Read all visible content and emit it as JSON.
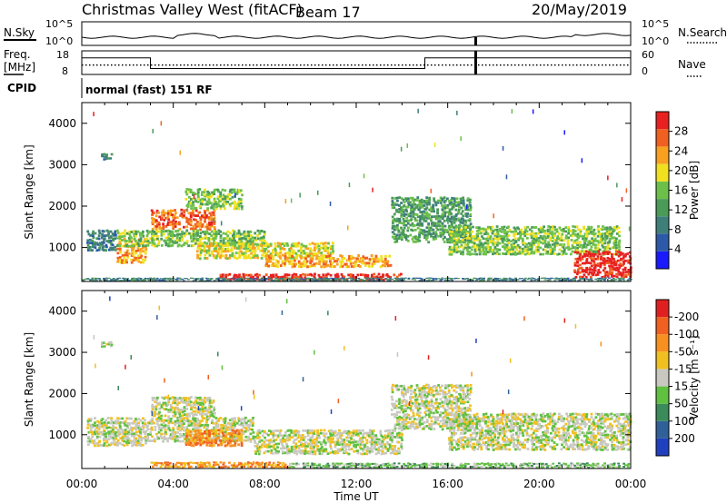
{
  "header": {
    "title": "Christmas Valley West (fitACF)",
    "beam": "Beam 17",
    "date": "20/May/2019"
  },
  "top_panels": {
    "nsky_label": "N.Sky",
    "nsearch_label": "N.Search",
    "noise_ticks_left": [
      "10^5",
      "10^0"
    ],
    "noise_ticks_right": [
      "10^5",
      "10^0"
    ],
    "freq_label_line1": "Freq.",
    "freq_label_line2": "[MHz]",
    "freq_ticks": [
      "18",
      "8"
    ],
    "nave_label": "Nave",
    "nave_ticks": [
      "60",
      "0"
    ],
    "cpid_label": "CPID",
    "cpid_text": "normal (fast) 151 RF",
    "freq_series": {
      "x_hours": [
        0,
        3.0,
        3.0,
        15.0,
        15.0,
        24
      ],
      "freq_mhz": [
        15,
        15,
        10.5,
        10.5,
        15,
        15
      ]
    },
    "dotted_level_mhz": 12
  },
  "chart_data": [
    {
      "type": "heatmap",
      "name": "power",
      "xlabel": "",
      "ylabel": "Slant Range [km]",
      "x_ticks": [
        "00:00",
        "04:00",
        "08:00",
        "12:00",
        "16:00",
        "20:00",
        "00:00"
      ],
      "xlim": [
        0,
        24
      ],
      "y_ticks": [
        "1000",
        "2000",
        "3000",
        "4000"
      ],
      "ylim": [
        180,
        4500
      ],
      "colorbar": {
        "label": "Power [dB]",
        "ticks": [
          "4",
          "8",
          "12",
          "16",
          "20",
          "24",
          "28"
        ],
        "colors": [
          "#1a1aff",
          "#2c5aa8",
          "#3f7f7a",
          "#4a9a58",
          "#6cc04a",
          "#f0e020",
          "#f8a020",
          "#f06020",
          "#e82020"
        ]
      },
      "regions": [
        {
          "x0": 0.2,
          "x1": 1.5,
          "y0": 900,
          "y1": 1400,
          "level": 2
        },
        {
          "x0": 1.5,
          "x1": 2.8,
          "y0": 600,
          "y1": 1200,
          "level": 6
        },
        {
          "x0": 3.0,
          "x1": 5.8,
          "y0": 1400,
          "y1": 1900,
          "level": 7
        },
        {
          "x0": 1.5,
          "x1": 8.0,
          "y0": 1000,
          "y1": 1400,
          "level": 4
        },
        {
          "x0": 5.0,
          "x1": 11.0,
          "y0": 700,
          "y1": 1100,
          "level": 5
        },
        {
          "x0": 8.0,
          "x1": 13.5,
          "y0": 500,
          "y1": 800,
          "level": 6
        },
        {
          "x0": 6.0,
          "x1": 14.0,
          "y0": 180,
          "y1": 350,
          "level": 8
        },
        {
          "x0": 13.5,
          "x1": 17.0,
          "y0": 1100,
          "y1": 2200,
          "level": 3
        },
        {
          "x0": 16.0,
          "x1": 23.5,
          "y0": 800,
          "y1": 1500,
          "level": 4
        },
        {
          "x0": 21.5,
          "x1": 24.0,
          "y0": 250,
          "y1": 900,
          "level": 8
        },
        {
          "x0": 0.8,
          "x1": 1.3,
          "y0": 3100,
          "y1": 3250,
          "level": 2
        },
        {
          "x0": 4.5,
          "x1": 7.0,
          "y0": 1900,
          "y1": 2400,
          "level": 4
        },
        {
          "x0": 0.0,
          "x1": 24.0,
          "y0": 180,
          "y1": 260,
          "level": 2
        }
      ]
    },
    {
      "type": "heatmap",
      "name": "velocity",
      "xlabel": "Time UT",
      "ylabel": "Slant Range [km]",
      "x_ticks": [
        "00:00",
        "04:00",
        "08:00",
        "12:00",
        "16:00",
        "20:00",
        "00:00"
      ],
      "xlim": [
        0,
        24
      ],
      "y_ticks": [
        "1000",
        "2000",
        "3000",
        "4000"
      ],
      "ylim": [
        180,
        4500
      ],
      "colorbar": {
        "label": "Velocity [m s⁻¹]",
        "ticks": [
          "200",
          "100",
          "50",
          "15",
          "-15",
          "-50",
          "-100",
          "-200"
        ],
        "colors": [
          "#2040c0",
          "#306098",
          "#3a8a5a",
          "#60c040",
          "#c8c8c0",
          "#f0c020",
          "#f89020",
          "#f06020",
          "#e02020"
        ]
      },
      "regions": [
        {
          "x0": 0.2,
          "x1": 2.8,
          "y0": 700,
          "y1": 1400,
          "level": 4
        },
        {
          "x0": 3.0,
          "x1": 5.8,
          "y0": 1400,
          "y1": 1900,
          "level": 4
        },
        {
          "x0": 2.8,
          "x1": 7.5,
          "y0": 800,
          "y1": 1400,
          "level": 4
        },
        {
          "x0": 4.5,
          "x1": 7.0,
          "y0": 700,
          "y1": 1100,
          "level": 6
        },
        {
          "x0": 7.5,
          "x1": 14.0,
          "y0": 500,
          "y1": 1100,
          "level": 4
        },
        {
          "x0": 3.0,
          "x1": 9.0,
          "y0": 180,
          "y1": 320,
          "level": 6
        },
        {
          "x0": 9.0,
          "x1": 24.0,
          "y0": 180,
          "y1": 300,
          "level": 3
        },
        {
          "x0": 13.5,
          "x1": 17.0,
          "y0": 1100,
          "y1": 2200,
          "level": 4
        },
        {
          "x0": 16.0,
          "x1": 24.0,
          "y0": 600,
          "y1": 1500,
          "level": 4
        },
        {
          "x0": 0.8,
          "x1": 1.3,
          "y0": 3100,
          "y1": 3250,
          "level": 4
        }
      ]
    }
  ]
}
